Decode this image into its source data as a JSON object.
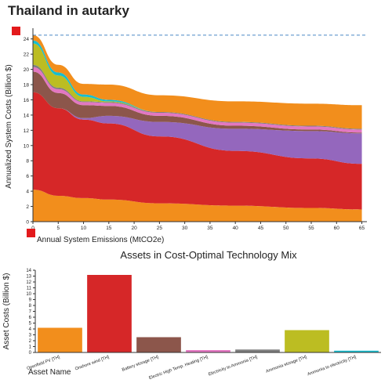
{
  "title": "Thailand in autarky",
  "handle_color": "#e31a1c",
  "chart_data": [
    {
      "type": "area",
      "xlabel": "Annual System Emissions (MtCO2e)",
      "ylabel": "Annualized System Costs (Billion $)",
      "xlim": [
        0,
        66
      ],
      "ylim": [
        0,
        25
      ],
      "xticks": [
        0,
        5,
        10,
        15,
        20,
        25,
        30,
        35,
        40,
        45,
        50,
        55,
        60,
        65
      ],
      "yticks": [
        0,
        2,
        4,
        6,
        8,
        10,
        12,
        14,
        16,
        18,
        20,
        22,
        24
      ],
      "reference_line": 24.5,
      "x": [
        0,
        5,
        10,
        15,
        25,
        40,
        55,
        65
      ],
      "series": [
        {
          "color": "#f28e1c",
          "values": [
            4.2,
            3.4,
            3.1,
            2.9,
            2.4,
            2.1,
            1.8,
            1.6
          ]
        },
        {
          "color": "#d62728",
          "values": [
            12.8,
            11.5,
            10.3,
            10.0,
            8.8,
            7.2,
            6.5,
            6.0
          ]
        },
        {
          "color": "#9467bd",
          "values": [
            0.0,
            0.0,
            0.2,
            1.0,
            1.9,
            2.9,
            3.6,
            4.0
          ]
        },
        {
          "color": "#8c564b",
          "values": [
            2.7,
            2.0,
            1.7,
            1.3,
            0.8,
            0.4,
            0.2,
            0.1
          ]
        },
        {
          "color": "#e377c2",
          "values": [
            0.6,
            0.5,
            0.4,
            0.4,
            0.4,
            0.4,
            0.4,
            0.4
          ]
        },
        {
          "color": "#7f7f7f",
          "values": [
            0.3,
            0.2,
            0.1,
            0.1,
            0.1,
            0.1,
            0.1,
            0.1
          ]
        },
        {
          "color": "#bcbd22",
          "values": [
            2.8,
            1.6,
            0.6,
            0.1,
            0.0,
            0.0,
            0.0,
            0.0
          ]
        },
        {
          "color": "#17becf",
          "values": [
            0.4,
            0.4,
            0.3,
            0.2,
            0.0,
            0.0,
            0.0,
            0.0
          ]
        },
        {
          "color": "#f28e1c",
          "values": [
            0.7,
            1.0,
            1.4,
            2.0,
            2.2,
            2.7,
            2.9,
            3.1
          ]
        }
      ]
    },
    {
      "type": "bar",
      "title": "Assets in Cost-Optimal Technology Mix",
      "xlabel": "Asset Name",
      "ylabel": "Asset Costs (Billion $)",
      "ylim": [
        0,
        14
      ],
      "yticks": [
        0,
        1,
        2,
        3,
        4,
        5,
        6,
        7,
        8,
        9,
        10,
        11,
        12,
        13,
        14
      ],
      "categories": [
        "Openfield PV [TH]",
        "Onshore wind [TH]",
        "Battery storage [TH]",
        "Electric High Temp. Heating [TH]",
        "Electricity to Ammonia [TH]",
        "Ammonia storage [TH]",
        "Ammonia to electricity [TH]"
      ],
      "values": [
        4.2,
        13.2,
        2.6,
        0.4,
        0.5,
        3.8,
        0.3
      ],
      "colors": [
        "#f28e1c",
        "#d62728",
        "#8c564b",
        "#e377c2",
        "#7f7f7f",
        "#bcbd22",
        "#17becf"
      ]
    }
  ]
}
